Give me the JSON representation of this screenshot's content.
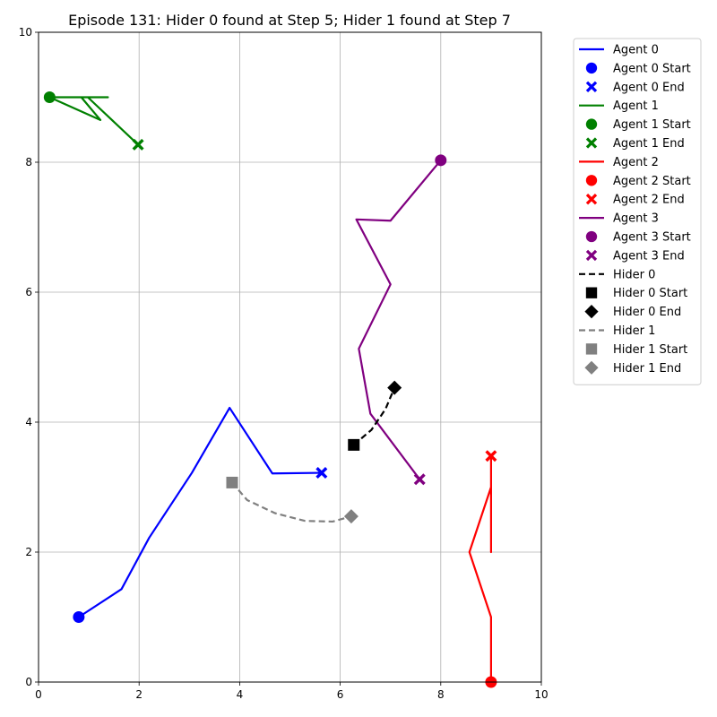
{
  "chart_data": {
    "type": "line",
    "title": "Episode 131: Hider 0 found at Step 5; Hider 1 found at Step 7",
    "xlabel": "",
    "ylabel": "",
    "xlim": [
      0,
      10
    ],
    "ylim": [
      0,
      10
    ],
    "xticks": [
      "0",
      "2",
      "4",
      "6",
      "8",
      "10"
    ],
    "yticks": [
      "0",
      "2",
      "4",
      "6",
      "8",
      "10"
    ],
    "grid": true,
    "legend_position": "outside-right-top",
    "series": [
      {
        "name": "Agent 0",
        "start_label": "Agent 0 Start",
        "end_label": "Agent 0 End",
        "color": "#0000ff",
        "dash": "solid",
        "start_marker": "circle",
        "end_marker": "x",
        "x": [
          0.8,
          1.65,
          2.2,
          3.05,
          3.8,
          4.65,
          5.63
        ],
        "y": [
          1.0,
          1.43,
          2.22,
          3.22,
          4.22,
          3.21,
          3.22
        ]
      },
      {
        "name": "Agent 1",
        "start_label": "Agent 1 Start",
        "end_label": "Agent 1 End",
        "color": "#008000",
        "dash": "solid",
        "start_marker": "circle",
        "end_marker": "x",
        "x": [
          0.22,
          1.38,
          0.85,
          1.23,
          0.22,
          0.98,
          1.98
        ],
        "y": [
          9.0,
          9.0,
          9.0,
          8.65,
          9.0,
          9.0,
          8.27
        ]
      },
      {
        "name": "Agent 2",
        "start_label": "Agent 2 Start",
        "end_label": "Agent 2 End",
        "color": "#ff0000",
        "dash": "solid",
        "start_marker": "circle",
        "end_marker": "x",
        "x": [
          9.0,
          9.0,
          8.57,
          9.0,
          9.0,
          9.0
        ],
        "y": [
          0.0,
          1.0,
          2.0,
          3.0,
          2.0,
          3.48
        ]
      },
      {
        "name": "Agent 3",
        "start_label": "Agent 3 Start",
        "end_label": "Agent 3 End",
        "color": "#800080",
        "dash": "solid",
        "start_marker": "circle",
        "end_marker": "x",
        "x": [
          8.0,
          7.0,
          6.32,
          7.0,
          6.37,
          6.6,
          7.58
        ],
        "y": [
          8.03,
          7.1,
          7.12,
          6.12,
          5.13,
          4.13,
          3.12
        ]
      },
      {
        "name": "Hider 0",
        "start_label": "Hider 0 Start",
        "end_label": "Hider 0 End",
        "color": "#000000",
        "dash": "dashed",
        "start_marker": "square",
        "end_marker": "diamond",
        "x": [
          6.27,
          6.62,
          6.9,
          7.08
        ],
        "y": [
          3.65,
          3.88,
          4.2,
          4.53
        ]
      },
      {
        "name": "Hider 1",
        "start_label": "Hider 1 Start",
        "end_label": "Hider 1 End",
        "color": "#808080",
        "dash": "dashed",
        "start_marker": "square",
        "end_marker": "diamond",
        "x": [
          3.85,
          4.15,
          4.7,
          5.3,
          5.85,
          6.22
        ],
        "y": [
          3.07,
          2.8,
          2.6,
          2.48,
          2.47,
          2.55
        ]
      }
    ]
  }
}
